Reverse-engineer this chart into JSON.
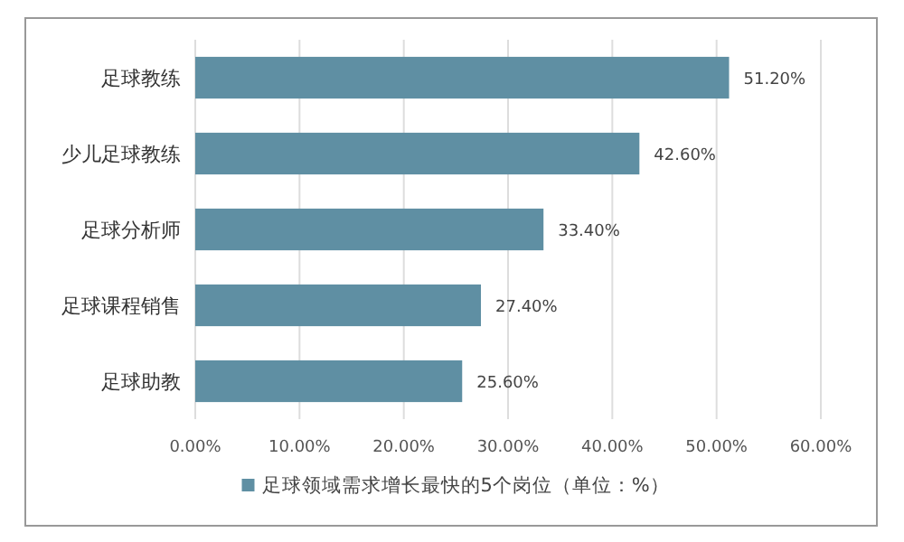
{
  "chart_data": {
    "type": "bar",
    "orientation": "horizontal",
    "categories": [
      "足球教练",
      "少儿足球教练",
      "足球分析师",
      "足球课程销售",
      "足球助教"
    ],
    "series": [
      {
        "name": "足球领域需求增长最快的5个岗位（单位：%）",
        "color": "#5f8fa3",
        "values": [
          51.2,
          42.6,
          33.4,
          27.4,
          25.6
        ],
        "value_labels": [
          "51.20%",
          "42.60%",
          "33.40%",
          "27.40%",
          "25.60%"
        ]
      }
    ],
    "xlim": [
      0,
      60
    ],
    "xticks": [
      {
        "value": 0,
        "label": "0.00%"
      },
      {
        "value": 10,
        "label": "10.00%"
      },
      {
        "value": 20,
        "label": "20.00%"
      },
      {
        "value": 30,
        "label": "30.00%"
      },
      {
        "value": 40,
        "label": "40.00%"
      },
      {
        "value": 50,
        "label": "50.00%"
      },
      {
        "value": 60,
        "label": "60.00%"
      }
    ],
    "grid": "x",
    "legend": "bottom"
  }
}
